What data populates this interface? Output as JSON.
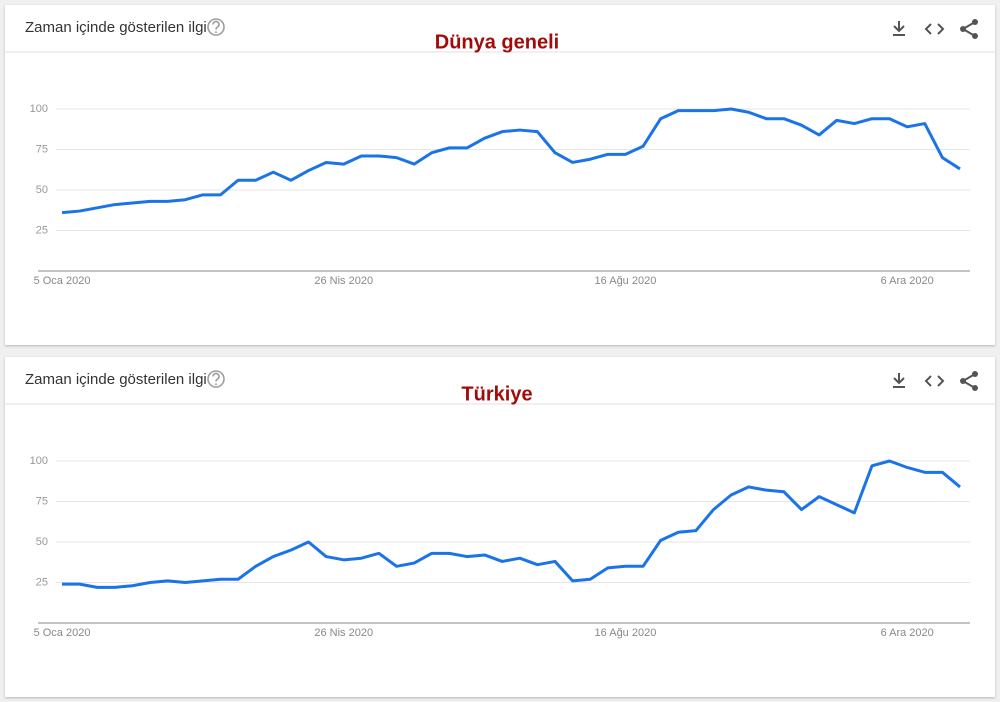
{
  "chart_data": [
    {
      "type": "line",
      "header": "Zaman içinde gösterilen ilgi",
      "title": "Dünya geneli",
      "categories": [
        "5 Oca 2020",
        null,
        null,
        null,
        null,
        null,
        null,
        null,
        null,
        null,
        null,
        null,
        null,
        null,
        null,
        null,
        "26 Nis 2020",
        null,
        null,
        null,
        null,
        null,
        null,
        null,
        null,
        null,
        null,
        null,
        null,
        null,
        null,
        null,
        "16 Ağu 2020",
        null,
        null,
        null,
        null,
        null,
        null,
        null,
        null,
        null,
        null,
        null,
        null,
        null,
        null,
        null,
        "6 Ara 2020",
        null,
        null,
        null
      ],
      "values": [
        36,
        37,
        39,
        41,
        42,
        43,
        43,
        44,
        47,
        47,
        56,
        56,
        61,
        56,
        62,
        67,
        66,
        71,
        71,
        70,
        66,
        73,
        76,
        76,
        82,
        86,
        87,
        86,
        73,
        67,
        69,
        72,
        72,
        77,
        94,
        99,
        99,
        99,
        100,
        98,
        94,
        94,
        90,
        84,
        93,
        91,
        94,
        94,
        89,
        91,
        70,
        63
      ],
      "color": "#1a73e8",
      "ylim": [
        0,
        100
      ],
      "yticks": [
        25,
        50,
        75,
        100
      ],
      "grid": true
    },
    {
      "type": "line",
      "header": "Zaman içinde gösterilen ilgi",
      "title": "Türkiye",
      "categories": [
        "5 Oca 2020",
        null,
        null,
        null,
        null,
        null,
        null,
        null,
        null,
        null,
        null,
        null,
        null,
        null,
        null,
        null,
        "26 Nis 2020",
        null,
        null,
        null,
        null,
        null,
        null,
        null,
        null,
        null,
        null,
        null,
        null,
        null,
        null,
        null,
        "16 Ağu 2020",
        null,
        null,
        null,
        null,
        null,
        null,
        null,
        null,
        null,
        null,
        null,
        null,
        null,
        null,
        null,
        "6 Ara 2020",
        null,
        null,
        null
      ],
      "values": [
        24,
        24,
        22,
        22,
        23,
        25,
        26,
        25,
        26,
        27,
        27,
        35,
        41,
        45,
        50,
        41,
        39,
        40,
        43,
        35,
        37,
        43,
        43,
        41,
        42,
        38,
        40,
        36,
        38,
        26,
        27,
        34,
        35,
        35,
        51,
        56,
        57,
        70,
        79,
        84,
        82,
        81,
        70,
        78,
        73,
        68,
        97,
        100,
        96,
        93,
        93,
        84
      ],
      "color": "#1a73e8",
      "ylim": [
        0,
        100
      ],
      "yticks": [
        25,
        50,
        75,
        100
      ],
      "grid": true
    }
  ]
}
